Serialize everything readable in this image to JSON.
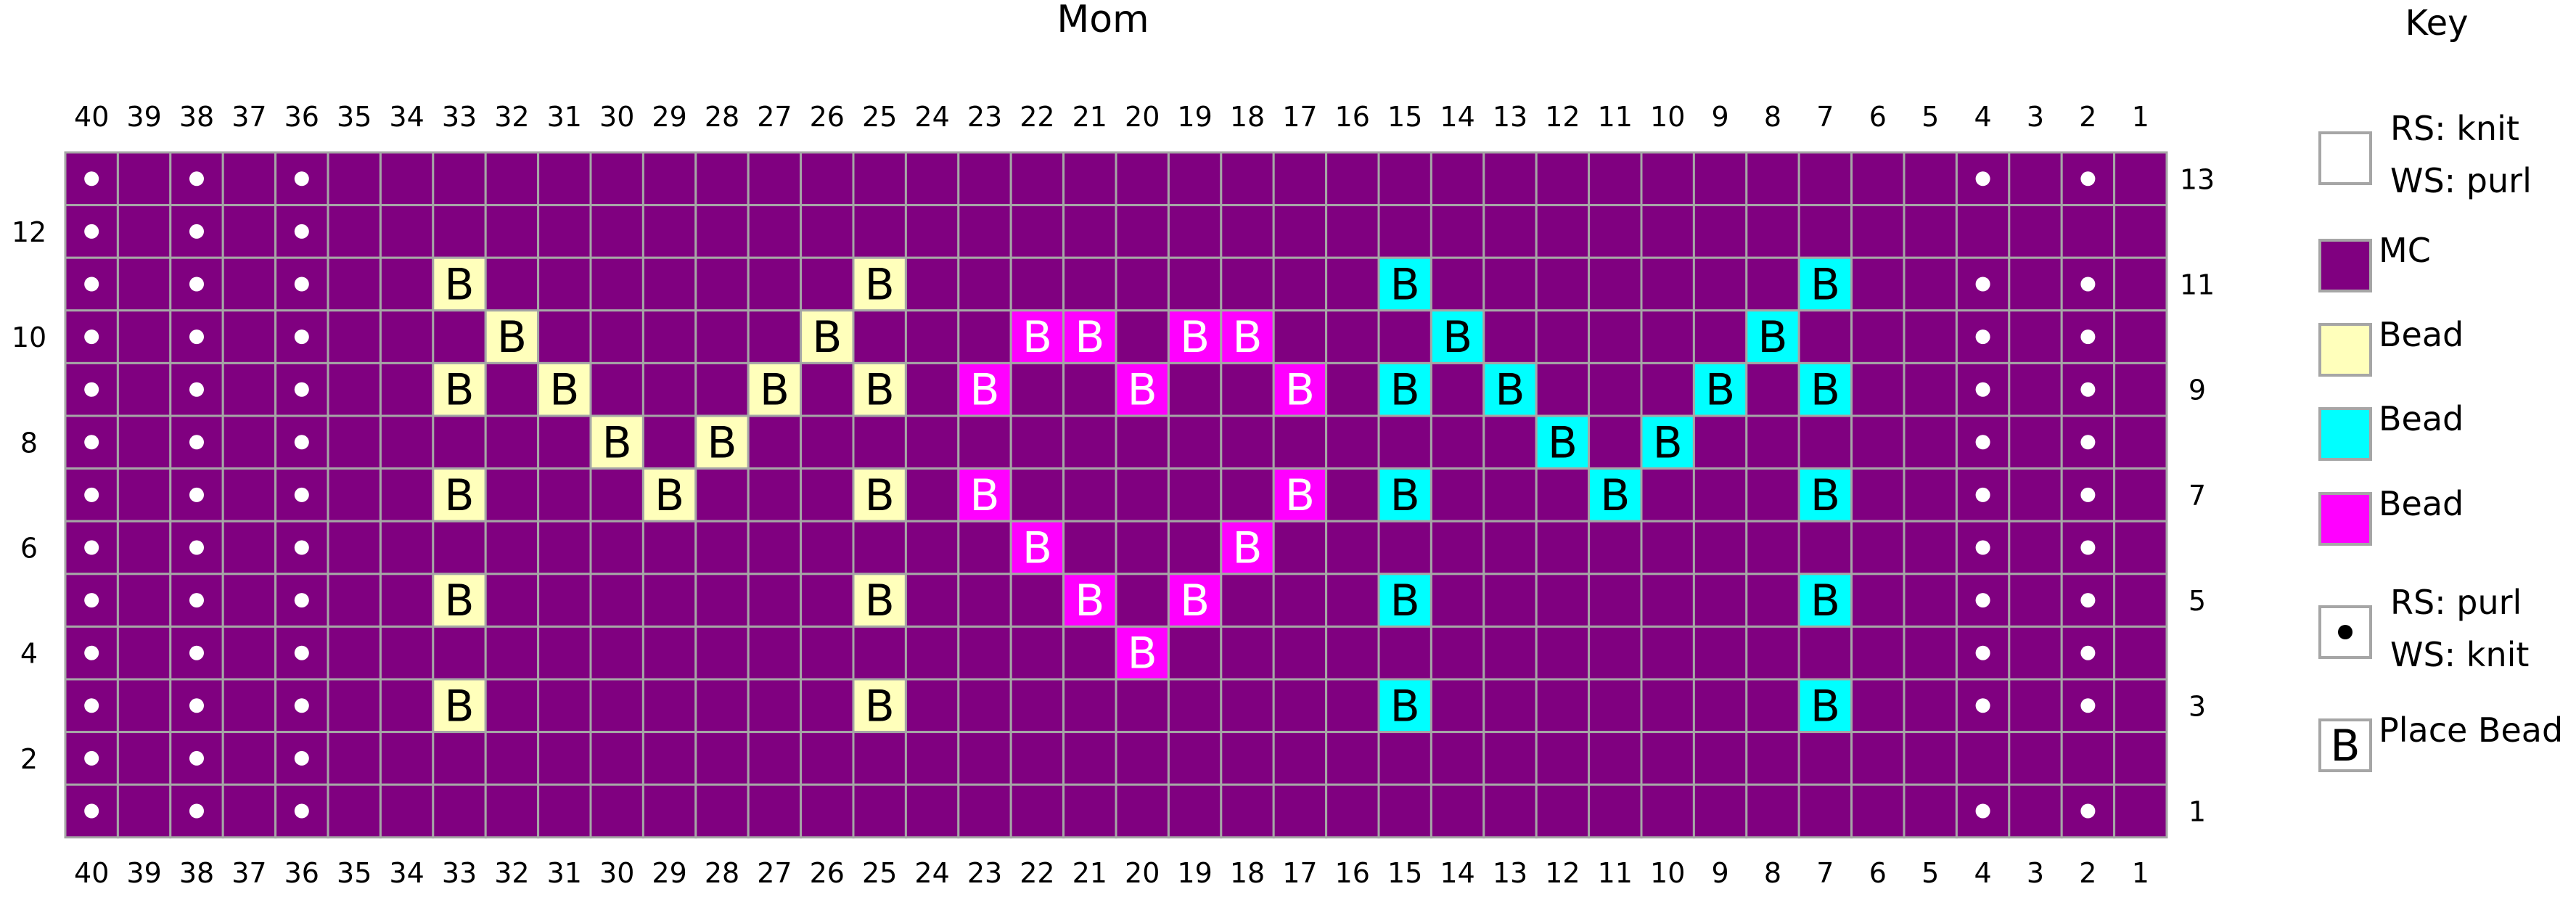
{
  "title": "Mom",
  "key": {
    "title": "Key",
    "items": [
      {
        "lines": [
          "RS: knit",
          "WS: purl"
        ],
        "swatch": "#ffffff",
        "symbol": "none"
      },
      {
        "lines": [
          "MC"
        ],
        "swatch": "#800080",
        "symbol": "none"
      },
      {
        "lines": [
          "Bead"
        ],
        "swatch": "#ffffbb",
        "symbol": "none"
      },
      {
        "lines": [
          "Bead"
        ],
        "swatch": "#00ffff",
        "symbol": "none"
      },
      {
        "lines": [
          "Bead"
        ],
        "swatch": "#ff00ff",
        "symbol": "none"
      },
      {
        "lines": [
          "RS: purl",
          "WS: knit"
        ],
        "swatch": "#ffffff",
        "symbol": "dot"
      },
      {
        "lines": [
          "Place Bead"
        ],
        "swatch": "#ffffff",
        "symbol": "B"
      }
    ]
  },
  "colors": {
    "mc": "#800080",
    "yellow": "#ffffbb",
    "cyan": "#00ffff",
    "magenta": "#ff00ff",
    "grid_line": "#a6a6a6",
    "purl_dot": "#ffffff"
  },
  "bead_symbol": "B",
  "chart_data": {
    "type": "table",
    "columns": [
      40,
      39,
      38,
      37,
      36,
      35,
      34,
      33,
      32,
      31,
      30,
      29,
      28,
      27,
      26,
      25,
      24,
      23,
      22,
      21,
      20,
      19,
      18,
      17,
      16,
      15,
      14,
      13,
      12,
      11,
      10,
      9,
      8,
      7,
      6,
      5,
      4,
      3,
      2,
      1
    ],
    "rows": [
      13,
      12,
      11,
      10,
      9,
      8,
      7,
      6,
      5,
      4,
      3,
      2,
      1
    ],
    "left_row_labels": [
      12,
      10,
      8,
      6,
      4,
      2
    ],
    "right_row_labels": [
      13,
      11,
      9,
      7,
      5,
      3,
      1
    ],
    "purl_columns": [
      40,
      38,
      36,
      4,
      2
    ],
    "purl_rows_right_edge": [
      1,
      3,
      4,
      5,
      6,
      7,
      8,
      9,
      10,
      11,
      13
    ],
    "beads": [
      {
        "row": 11,
        "col": 33,
        "color": "yellow"
      },
      {
        "row": 11,
        "col": 25,
        "color": "yellow"
      },
      {
        "row": 11,
        "col": 15,
        "color": "cyan"
      },
      {
        "row": 11,
        "col": 7,
        "color": "cyan"
      },
      {
        "row": 10,
        "col": 32,
        "color": "yellow"
      },
      {
        "row": 10,
        "col": 26,
        "color": "yellow"
      },
      {
        "row": 10,
        "col": 22,
        "color": "magenta"
      },
      {
        "row": 10,
        "col": 21,
        "color": "magenta"
      },
      {
        "row": 10,
        "col": 19,
        "color": "magenta"
      },
      {
        "row": 10,
        "col": 18,
        "color": "magenta"
      },
      {
        "row": 10,
        "col": 14,
        "color": "cyan"
      },
      {
        "row": 10,
        "col": 8,
        "color": "cyan"
      },
      {
        "row": 9,
        "col": 33,
        "color": "yellow"
      },
      {
        "row": 9,
        "col": 31,
        "color": "yellow"
      },
      {
        "row": 9,
        "col": 27,
        "color": "yellow"
      },
      {
        "row": 9,
        "col": 25,
        "color": "yellow"
      },
      {
        "row": 9,
        "col": 23,
        "color": "magenta"
      },
      {
        "row": 9,
        "col": 20,
        "color": "magenta"
      },
      {
        "row": 9,
        "col": 17,
        "color": "magenta"
      },
      {
        "row": 9,
        "col": 15,
        "color": "cyan"
      },
      {
        "row": 9,
        "col": 13,
        "color": "cyan"
      },
      {
        "row": 9,
        "col": 9,
        "color": "cyan"
      },
      {
        "row": 9,
        "col": 7,
        "color": "cyan"
      },
      {
        "row": 8,
        "col": 30,
        "color": "yellow"
      },
      {
        "row": 8,
        "col": 28,
        "color": "yellow"
      },
      {
        "row": 8,
        "col": 12,
        "color": "cyan"
      },
      {
        "row": 8,
        "col": 10,
        "color": "cyan"
      },
      {
        "row": 7,
        "col": 33,
        "color": "yellow"
      },
      {
        "row": 7,
        "col": 29,
        "color": "yellow"
      },
      {
        "row": 7,
        "col": 25,
        "color": "yellow"
      },
      {
        "row": 7,
        "col": 23,
        "color": "magenta"
      },
      {
        "row": 7,
        "col": 17,
        "color": "magenta"
      },
      {
        "row": 7,
        "col": 15,
        "color": "cyan"
      },
      {
        "row": 7,
        "col": 11,
        "color": "cyan"
      },
      {
        "row": 7,
        "col": 7,
        "color": "cyan"
      },
      {
        "row": 6,
        "col": 22,
        "color": "magenta"
      },
      {
        "row": 6,
        "col": 18,
        "color": "magenta"
      },
      {
        "row": 5,
        "col": 33,
        "color": "yellow"
      },
      {
        "row": 5,
        "col": 25,
        "color": "yellow"
      },
      {
        "row": 5,
        "col": 21,
        "color": "magenta"
      },
      {
        "row": 5,
        "col": 19,
        "color": "magenta"
      },
      {
        "row": 5,
        "col": 15,
        "color": "cyan"
      },
      {
        "row": 5,
        "col": 7,
        "color": "cyan"
      },
      {
        "row": 4,
        "col": 20,
        "color": "magenta"
      },
      {
        "row": 3,
        "col": 33,
        "color": "yellow"
      },
      {
        "row": 3,
        "col": 25,
        "color": "yellow"
      },
      {
        "row": 3,
        "col": 15,
        "color": "cyan"
      },
      {
        "row": 3,
        "col": 7,
        "color": "cyan"
      }
    ]
  }
}
